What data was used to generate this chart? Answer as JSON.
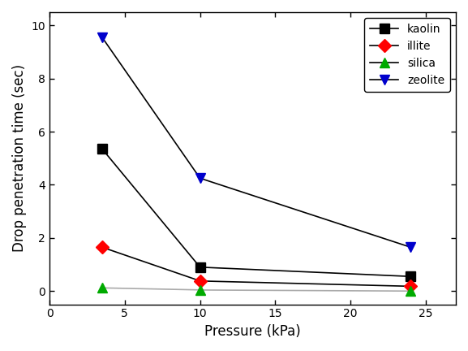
{
  "series": {
    "kaolin": {
      "x": [
        3.5,
        10,
        24
      ],
      "y": [
        5.35,
        0.9,
        0.55
      ],
      "line_color": "#000000",
      "marker": "s",
      "marker_color": "#000000",
      "label": "kaolin"
    },
    "illite": {
      "x": [
        3.5,
        10,
        24
      ],
      "y": [
        1.65,
        0.38,
        0.18
      ],
      "line_color": "#000000",
      "marker": "D",
      "marker_color": "#ff0000",
      "label": "illite"
    },
    "silica": {
      "x": [
        3.5,
        10,
        24
      ],
      "y": [
        0.12,
        0.04,
        0.0
      ],
      "line_color": "#aaaaaa",
      "marker": "^",
      "marker_color": "#00aa00",
      "label": "silica"
    },
    "zeolite": {
      "x": [
        3.5,
        10,
        24
      ],
      "y": [
        9.55,
        4.25,
        1.65
      ],
      "line_color": "#000000",
      "marker": "v",
      "marker_color": "#0000cc",
      "label": "zeolite"
    }
  },
  "series_order": [
    "kaolin",
    "illite",
    "silica",
    "zeolite"
  ],
  "xlabel": "Pressure (kPa)",
  "ylabel": "Drop penetration time (sec)",
  "xlim": [
    0,
    27
  ],
  "ylim": [
    -0.5,
    10.5
  ],
  "yticks": [
    0,
    2,
    4,
    6,
    8,
    10
  ],
  "xticks": [
    0,
    5,
    10,
    15,
    20,
    25
  ],
  "legend_loc": "upper right",
  "figsize": [
    5.77,
    4.32
  ],
  "dpi": 100
}
